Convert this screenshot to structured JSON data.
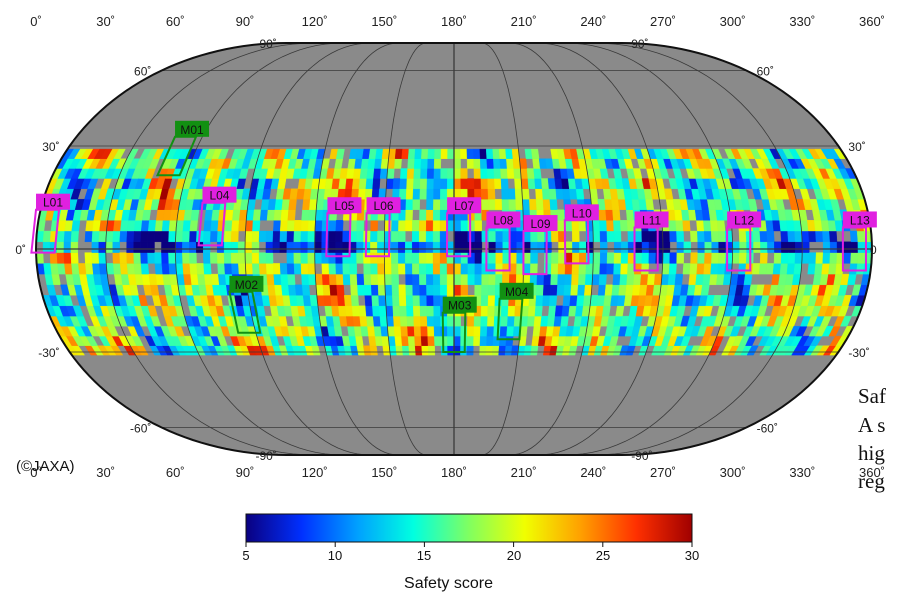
{
  "map": {
    "lon_top": [
      "0˚",
      "30˚",
      "60˚",
      "90˚",
      "120˚",
      "150˚",
      "180˚",
      "210˚",
      "240˚",
      "270˚",
      "300˚",
      "330˚",
      "360˚"
    ],
    "lon_bottom": [
      "0˚",
      "30˚",
      "60˚",
      "90˚",
      "120˚",
      "150˚",
      "180˚",
      "210˚",
      "240˚",
      "270˚",
      "300˚",
      "330˚",
      "360˚"
    ],
    "lat_left": [
      {
        "text": "90˚",
        "lat": 90
      },
      {
        "text": "60˚",
        "lat": 60
      },
      {
        "text": "30˚",
        "lat": 30
      },
      {
        "text": "0˚",
        "lat": 0
      },
      {
        "text": "-30˚",
        "lat": -30
      },
      {
        "text": "-60˚",
        "lat": -60
      },
      {
        "text": "-90˚",
        "lat": -90
      }
    ],
    "lat_right": [
      {
        "text": "90˚",
        "lat": 90
      },
      {
        "text": "60˚",
        "lat": 60
      },
      {
        "text": "30˚",
        "lat": 30
      },
      {
        "text": "0",
        "lat": 0
      },
      {
        "text": "-30˚",
        "lat": -30
      },
      {
        "text": "-60˚",
        "lat": -60
      },
      {
        "text": "-90˚",
        "lat": -90
      }
    ],
    "colors": {
      "no_data": "#8a8a8a",
      "graticule": "#3a3a3a",
      "low_site": "#e020e0",
      "mid_site": "#129012"
    },
    "sites_low_lat": [
      {
        "id": "L01",
        "lon": 3,
        "lat": 5
      },
      {
        "id": "L04",
        "lon": 75,
        "lat": 7
      },
      {
        "id": "L05",
        "lon": 130,
        "lat": 4
      },
      {
        "id": "L06",
        "lon": 147,
        "lat": 4
      },
      {
        "id": "L07",
        "lon": 182,
        "lat": 4
      },
      {
        "id": "L08",
        "lon": 199,
        "lat": 0
      },
      {
        "id": "L09",
        "lon": 215,
        "lat": -1
      },
      {
        "id": "L10",
        "lon": 233,
        "lat": 2
      },
      {
        "id": "L11",
        "lon": 263,
        "lat": 0
      },
      {
        "id": "L12",
        "lon": 303,
        "lat": 0
      },
      {
        "id": "L13",
        "lon": 353,
        "lat": 0
      }
    ],
    "sites_mid_lat": [
      {
        "id": "M01",
        "lon": 52,
        "lat": 27
      },
      {
        "id": "M02",
        "lon": 87,
        "lat": -18
      },
      {
        "id": "M03",
        "lon": 180,
        "lat": -24
      },
      {
        "id": "M04",
        "lon": 205,
        "lat": -20
      }
    ]
  },
  "colorbar": {
    "min": 5,
    "max": 30,
    "ticks": [
      "5",
      "10",
      "15",
      "20",
      "25",
      "30"
    ],
    "title": "Safety score",
    "stops": [
      "#0a0080",
      "#0030ff",
      "#00a0ff",
      "#00ffe0",
      "#80ff60",
      "#f0ff00",
      "#ffa000",
      "#ff3000",
      "#a00000"
    ]
  },
  "credit": "(©JAXA)",
  "side_text": [
    "Saf",
    "A s",
    "hig",
    "reg"
  ]
}
